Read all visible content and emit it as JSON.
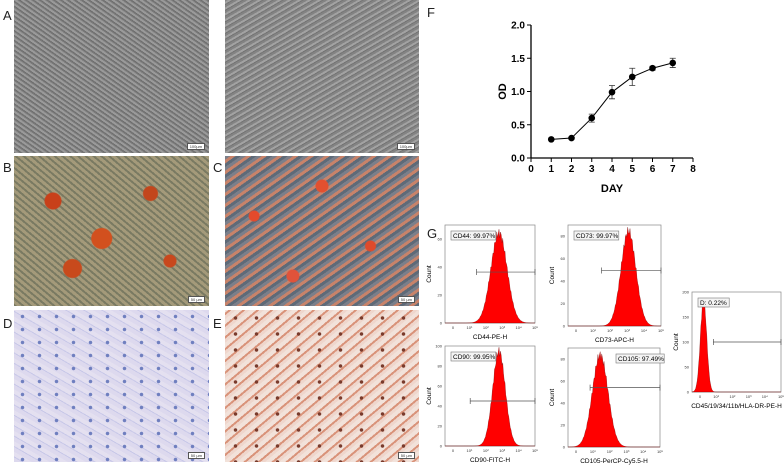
{
  "panels": {
    "A": "A",
    "B": "B",
    "C": "C",
    "D": "D",
    "E": "E",
    "F": "F",
    "G": "G"
  },
  "scale_bars": {
    "a_left": "100µm",
    "a_right": "100µm",
    "b": "50 µm",
    "c": "50 µm",
    "d": "50 µm",
    "e": "50 µm"
  },
  "chart_data": {
    "type": "line",
    "xlabel": "DAY",
    "ylabel": "OD",
    "x": [
      1,
      2,
      3,
      4,
      5,
      6,
      7
    ],
    "y": [
      0.28,
      0.3,
      0.6,
      0.99,
      1.22,
      1.35,
      1.43
    ],
    "error": [
      0.01,
      0.01,
      0.06,
      0.1,
      0.13,
      0.03,
      0.07
    ],
    "xlim": [
      0,
      8
    ],
    "ylim": [
      0,
      2.0
    ],
    "xticks": [
      "0",
      "1",
      "2",
      "3",
      "4",
      "5",
      "6",
      "7",
      "8"
    ],
    "yticks": [
      "0.0",
      "0.5",
      "1.0",
      "1.5",
      "2.0"
    ],
    "grid": false,
    "marker": "circle",
    "color": "#000000"
  },
  "flow": [
    {
      "gate": "CD44: 99.97%",
      "xlabel": "CD44-PE-H",
      "ylabel": "Count",
      "yticks": [
        "0",
        "20",
        "40",
        "60"
      ],
      "ymax": 70,
      "peak": 0.6,
      "width": 0.09,
      "height": 0.92,
      "gate_range": [
        0.35,
        1.0
      ],
      "gate_y": 0.52
    },
    {
      "gate": "CD73: 99.97%",
      "xlabel": "CD73-APC-H",
      "ylabel": "Count",
      "yticks": [
        "0",
        "20",
        "40",
        "60",
        "80"
      ],
      "ymax": 90,
      "peak": 0.65,
      "width": 0.08,
      "height": 0.94,
      "gate_range": [
        0.36,
        1.0
      ],
      "gate_y": 0.55
    },
    {
      "gate": "D: 0.22%",
      "xlabel": "CD45/19/34/11b/HLA-DR-PE-H",
      "ylabel": "Count",
      "yticks": [
        "0",
        "50",
        "100",
        "150",
        "200"
      ],
      "ymax": 200,
      "peak": 0.13,
      "width": 0.035,
      "height": 0.93,
      "gate_range": [
        0.24,
        1.0
      ],
      "gate_y": 0.5
    },
    {
      "gate": "CD90: 99.95%",
      "xlabel": "CD90-FITC-H",
      "ylabel": "Count",
      "yticks": [
        "0",
        "20",
        "40",
        "60",
        "80",
        "100"
      ],
      "ymax": 100,
      "peak": 0.6,
      "width": 0.07,
      "height": 0.95,
      "gate_range": [
        0.28,
        1.0
      ],
      "gate_y": 0.45
    },
    {
      "gate": "CD105: 97.49%",
      "xlabel": "CD105-PerCP-Cy5.5-H",
      "ylabel": "Count",
      "yticks": [
        "0",
        "20",
        "40",
        "60",
        "80"
      ],
      "ymax": 90,
      "peak": 0.35,
      "width": 0.085,
      "height": 0.93,
      "gate_range": [
        0.24,
        1.0
      ],
      "gate_y": 0.6
    }
  ],
  "flow_xticks": [
    "0",
    "10¹",
    "10²",
    "10³",
    "10⁴",
    "10⁵"
  ],
  "colors": {
    "histogram": "#ff0000"
  }
}
